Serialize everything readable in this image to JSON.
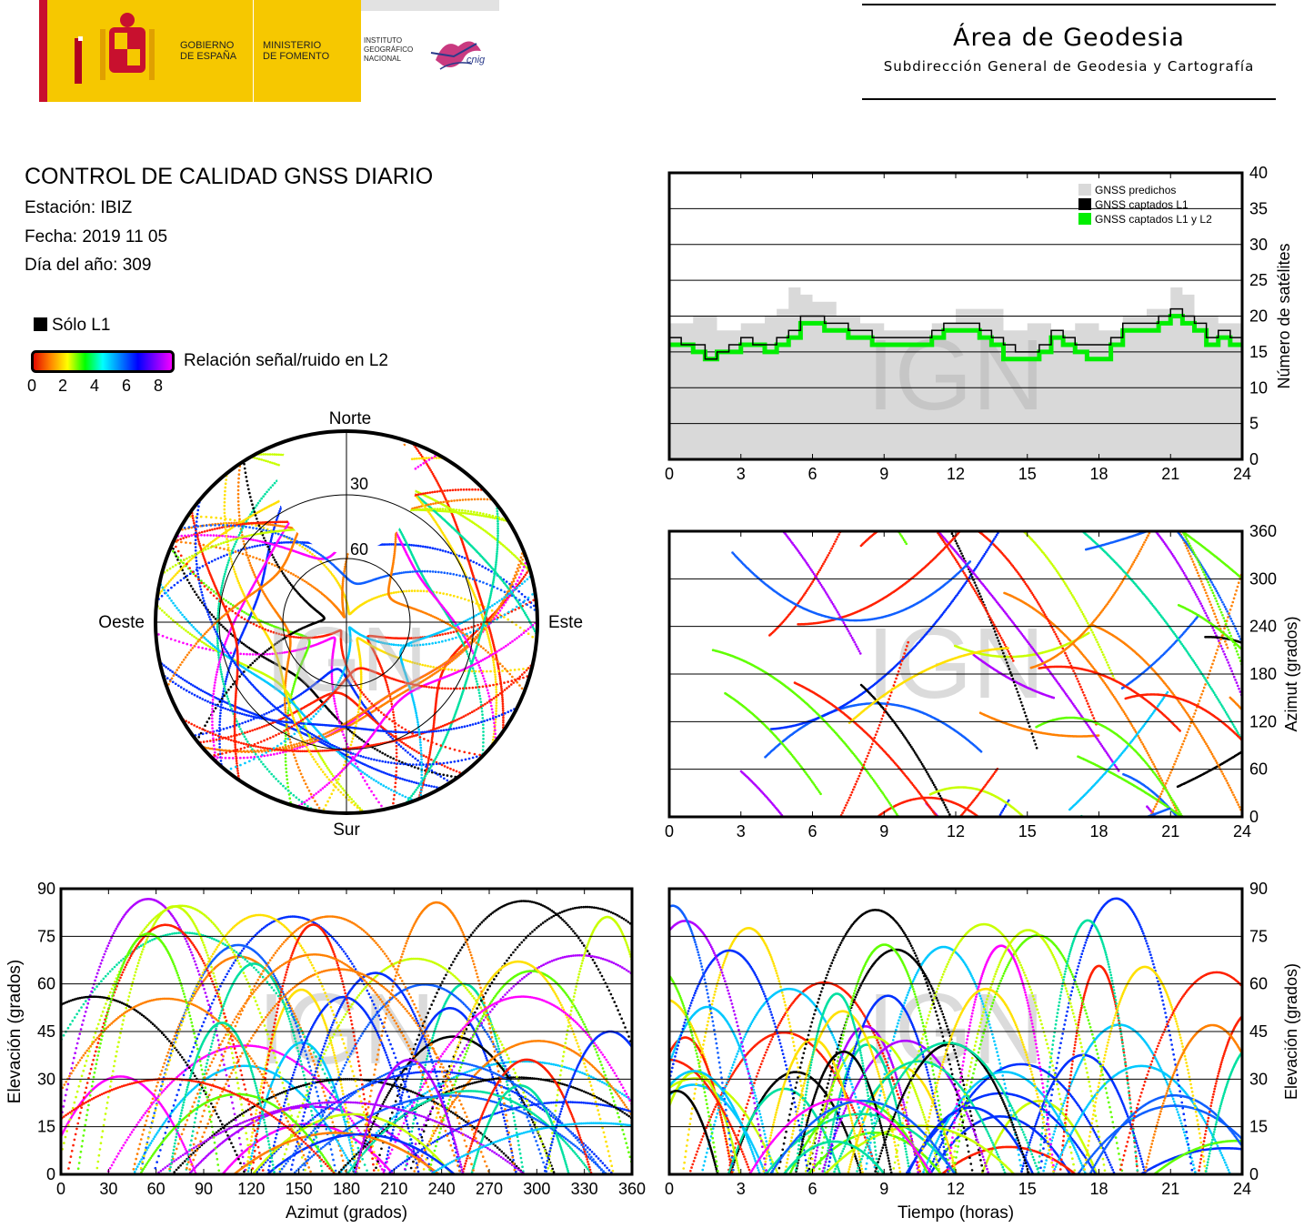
{
  "header": {
    "logo_gobierno": "GOBIERNO\nDE ESPAÑA",
    "logo_ministerio": "MINISTERIO\nDE FOMENTO",
    "logo_instituto": "INSTITUTO\nGEOGRÁFICO\nNACIONAL",
    "logo_cnig": "cnig",
    "area_title": "Área de Geodesia",
    "area_subtitle": "Subdirección General de Geodesia y Cartografía"
  },
  "info": {
    "title": "CONTROL DE CALIDAD GNSS DIARIO",
    "station": "Estación: IBIZ",
    "date": "Fecha: 2019 11 05",
    "doy": "Día del año: 309",
    "legend_l1": "Sólo L1",
    "snr_label": "Relación señal/ruido en L2",
    "snr_ticks": [
      "0",
      "2",
      "4",
      "6",
      "8"
    ],
    "snr_colors": [
      "#e00000",
      "#ff8000",
      "#ffff00",
      "#00ff00",
      "#00ffff",
      "#0080ff",
      "#0000ff",
      "#8000ff",
      "#ff00ff"
    ]
  },
  "watermark": "IGN",
  "colors": {
    "sat_palette": [
      "#ff00ff",
      "#b000ff",
      "#0030ff",
      "#1060ff",
      "#00c8ff",
      "#00e0a0",
      "#60ff00",
      "#c8ff00",
      "#ffe000",
      "#ff8000",
      "#ff2000",
      "#000000"
    ]
  },
  "chart_data": [
    {
      "id": "count",
      "type": "area",
      "ylabel": "Número de satélites",
      "xticks": [
        "0",
        "3",
        "6",
        "9",
        "12",
        "15",
        "18",
        "21",
        "24"
      ],
      "yticks": [
        "0",
        "5",
        "10",
        "15",
        "20",
        "25",
        "30",
        "35",
        "40"
      ],
      "xlim": [
        0,
        24
      ],
      "ylim": [
        0,
        40
      ],
      "legend": [
        "GNSS predichos",
        "GNSS captados L1",
        "GNSS captados L1 y L2"
      ],
      "legend_position": "top-right",
      "series": [
        {
          "name": "GNSS predichos",
          "color": "#d9d9d9",
          "x": [
            0,
            1,
            2,
            3,
            4,
            4.5,
            5,
            5.5,
            6,
            7,
            8,
            9,
            10,
            11,
            12,
            13,
            14,
            15,
            16,
            17,
            18,
            19,
            20,
            20.5,
            21,
            21.5,
            22,
            23,
            24
          ],
          "values": [
            19,
            20,
            18,
            19,
            20,
            21,
            24,
            23,
            22,
            20,
            19,
            18,
            18,
            19,
            21,
            21,
            18,
            19,
            18,
            19,
            18,
            20,
            21,
            21,
            24,
            23,
            20,
            19,
            19
          ]
        },
        {
          "name": "GNSS captados L1",
          "color": "#000000",
          "x": [
            0,
            0.5,
            1,
            1.5,
            2,
            2.5,
            3,
            3.5,
            4,
            4.5,
            5,
            5.5,
            6,
            6.5,
            7,
            7.5,
            8,
            8.5,
            9,
            9.5,
            10,
            10.5,
            11,
            11.5,
            12,
            12.5,
            13,
            13.5,
            14,
            14.5,
            15,
            15.5,
            16,
            16.5,
            17,
            17.5,
            18,
            18.5,
            19,
            19.5,
            20,
            20.5,
            21,
            21.5,
            22,
            22.5,
            23,
            23.5,
            24
          ],
          "values": [
            17,
            16,
            16,
            14,
            15,
            16,
            17,
            16,
            16,
            17,
            18,
            20,
            20,
            19,
            19,
            18,
            18,
            17,
            17,
            17,
            17,
            17,
            18,
            19,
            19,
            19,
            18,
            17,
            16,
            15,
            15,
            16,
            18,
            17,
            16,
            16,
            16,
            17,
            19,
            19,
            19,
            20,
            21,
            20,
            19,
            17,
            18,
            17,
            17
          ]
        },
        {
          "name": "GNSS captados L1 y L2",
          "color": "#00ee00",
          "x": [
            0,
            0.5,
            1,
            1.5,
            2,
            2.5,
            3,
            3.5,
            4,
            4.5,
            5,
            5.5,
            6,
            6.5,
            7,
            7.5,
            8,
            8.5,
            9,
            9.5,
            10,
            10.5,
            11,
            11.5,
            12,
            12.5,
            13,
            13.5,
            14,
            14.5,
            15,
            15.5,
            16,
            16.5,
            17,
            17.5,
            18,
            18.5,
            19,
            19.5,
            20,
            20.5,
            21,
            21.5,
            22,
            22.5,
            23,
            23.5,
            24
          ],
          "values": [
            16,
            16,
            15,
            14,
            15,
            15,
            16,
            16,
            15,
            16,
            17,
            19,
            19,
            18,
            18,
            17,
            17,
            16,
            16,
            16,
            16,
            16,
            17,
            18,
            18,
            18,
            17,
            16,
            14,
            14,
            14,
            15,
            17,
            16,
            15,
            14,
            14,
            16,
            18,
            18,
            18,
            19,
            20,
            19,
            18,
            16,
            17,
            16,
            16
          ]
        }
      ]
    },
    {
      "id": "azimuth",
      "type": "scatter",
      "ylabel": "Azimut (grados)",
      "xticks": [
        "0",
        "3",
        "6",
        "9",
        "12",
        "15",
        "18",
        "21",
        "24"
      ],
      "yticks": [
        "0",
        "60",
        "120",
        "180",
        "240",
        "300",
        "360"
      ],
      "xlim": [
        0,
        24
      ],
      "ylim": [
        0,
        360
      ]
    },
    {
      "id": "skyplot",
      "type": "scatter",
      "labels": {
        "north": "Norte",
        "south": "Sur",
        "east": "Este",
        "west": "Oeste"
      },
      "rings": [
        "30",
        "60"
      ]
    },
    {
      "id": "elev-azimuth",
      "type": "scatter",
      "xlabel": "Azimut (grados)",
      "ylabel": "Elevación (grados)",
      "xticks": [
        "0",
        "30",
        "60",
        "90",
        "120",
        "150",
        "180",
        "210",
        "240",
        "270",
        "300",
        "330",
        "360"
      ],
      "yticks": [
        "0",
        "15",
        "30",
        "45",
        "60",
        "75",
        "90"
      ],
      "xlim": [
        0,
        360
      ],
      "ylim": [
        0,
        90
      ]
    },
    {
      "id": "elev-time",
      "type": "scatter",
      "xlabel": "Tiempo (horas)",
      "ylabel": "Elevación (grados)",
      "xticks": [
        "0",
        "3",
        "6",
        "9",
        "12",
        "15",
        "18",
        "21",
        "24"
      ],
      "yticks": [
        "0",
        "15",
        "30",
        "45",
        "60",
        "75",
        "90"
      ],
      "xlim": [
        0,
        24
      ],
      "ylim": [
        0,
        90
      ]
    }
  ]
}
